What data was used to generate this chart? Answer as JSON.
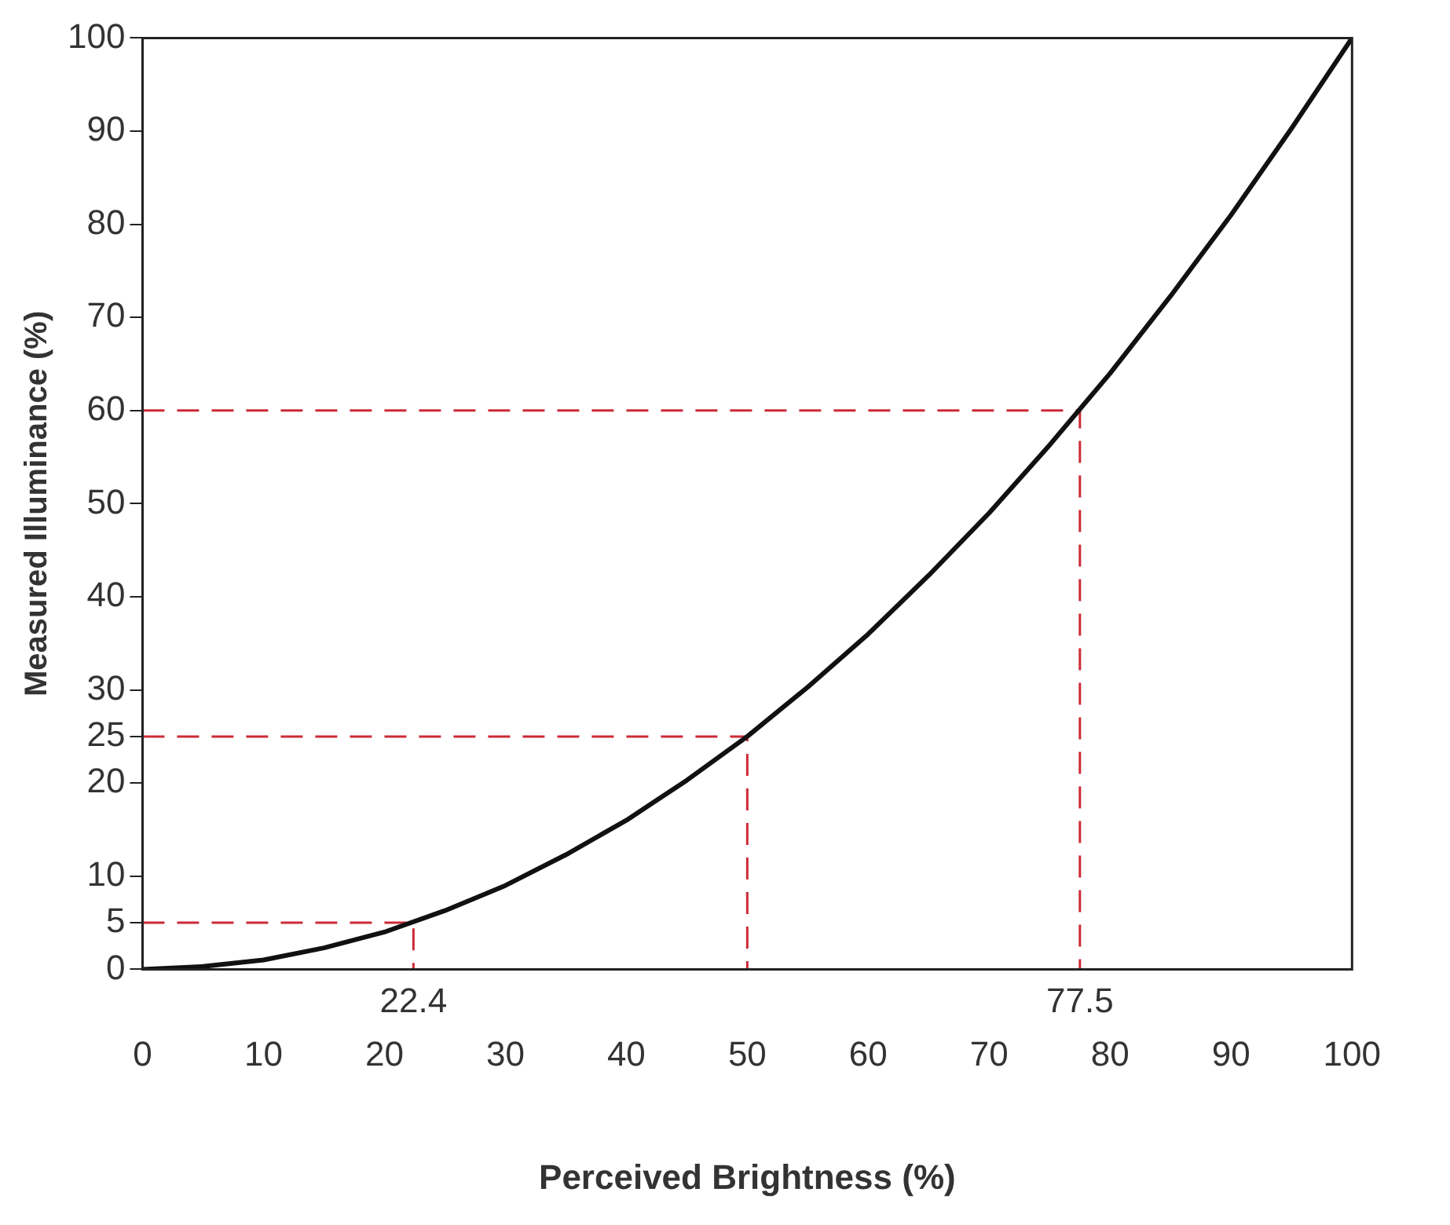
{
  "chart_data": {
    "type": "line",
    "xlabel": "Perceived Brightness (%)",
    "ylabel": "Measured Illuminance (%)",
    "xlim": [
      0,
      100
    ],
    "ylim": [
      0,
      100
    ],
    "xticks": [
      0,
      10,
      20,
      30,
      40,
      50,
      60,
      70,
      80,
      90,
      100
    ],
    "annotations": [
      {
        "text": "22.4",
        "x": 22.4,
        "y": 0
      },
      {
        "text": "77.5",
        "x": 77.5,
        "y": 0
      }
    ],
    "yticks": [
      0,
      5,
      10,
      20,
      25,
      30,
      40,
      50,
      60,
      70,
      80,
      90,
      100
    ],
    "grid": false,
    "marker": "none",
    "series": [
      {
        "color": "#111111",
        "line_style": "solid",
        "x": [
          0,
          5,
          10,
          15,
          20,
          25,
          30,
          35,
          40,
          45,
          50,
          55,
          60,
          65,
          70,
          75,
          80,
          85,
          90,
          95,
          100
        ],
        "values": [
          0,
          0.3,
          1,
          2.3,
          4,
          6.3,
          9,
          12.3,
          16,
          20.3,
          25,
          30.3,
          36,
          42.3,
          49,
          56.3,
          64,
          72.3,
          81,
          90.3,
          100
        ]
      },
      {
        "color": "#cc2a36",
        "line_style": "dashed",
        "x": [
          0,
          22.4,
          22.4
        ],
        "values": [
          5,
          5,
          0
        ]
      },
      {
        "color": "#cc2a36",
        "line_style": "dashed",
        "x": [
          0,
          50,
          50
        ],
        "values": [
          25,
          25,
          0
        ]
      },
      {
        "color": "#cc2a36",
        "line_style": "dashed",
        "x": [
          0,
          77.5,
          77.5
        ],
        "values": [
          60,
          60,
          0
        ]
      }
    ]
  }
}
